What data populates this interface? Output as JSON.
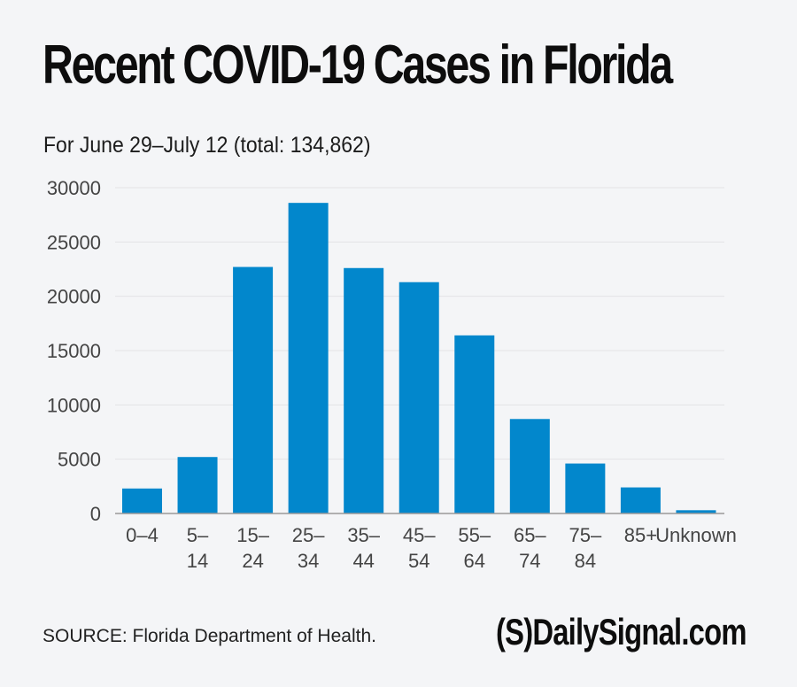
{
  "header": {
    "title": "Recent COVID-19 Cases in Florida",
    "subtitle": "For June 29–July 12 (total: 134,862)"
  },
  "footer": {
    "source": "SOURCE: Florida Department of Health.",
    "brand": "(S)DailySignal.com"
  },
  "colors": {
    "bar": "#0287cc",
    "background": "#f4f5f7",
    "gridline": "#e3e4e6",
    "axis": "#999999",
    "tick_text": "#444444"
  },
  "chart_data": {
    "type": "bar",
    "title": "Recent COVID-19 Cases in Florida",
    "subtitle": "For June 29–July 12 (total: 134,862)",
    "xlabel": "",
    "ylabel": "",
    "categories": [
      "0–4",
      "5–14",
      "15–24",
      "25–34",
      "35–44",
      "45–54",
      "55–64",
      "65–74",
      "75–84",
      "85+",
      "Unknown"
    ],
    "category_lines": [
      [
        "0–4"
      ],
      [
        "5–",
        "14"
      ],
      [
        "15–",
        "24"
      ],
      [
        "25–",
        "34"
      ],
      [
        "35–",
        "44"
      ],
      [
        "45–",
        "54"
      ],
      [
        "55–",
        "64"
      ],
      [
        "65–",
        "74"
      ],
      [
        "75–",
        "84"
      ],
      [
        "85+"
      ],
      [
        "Unknown"
      ]
    ],
    "values": [
      2300,
      5200,
      22700,
      28600,
      22600,
      21300,
      16400,
      8700,
      4600,
      2400,
      300
    ],
    "ylim": [
      0,
      30000
    ],
    "yticks": [
      0,
      5000,
      10000,
      15000,
      20000,
      25000,
      30000
    ],
    "grid": true,
    "legend": "none"
  }
}
